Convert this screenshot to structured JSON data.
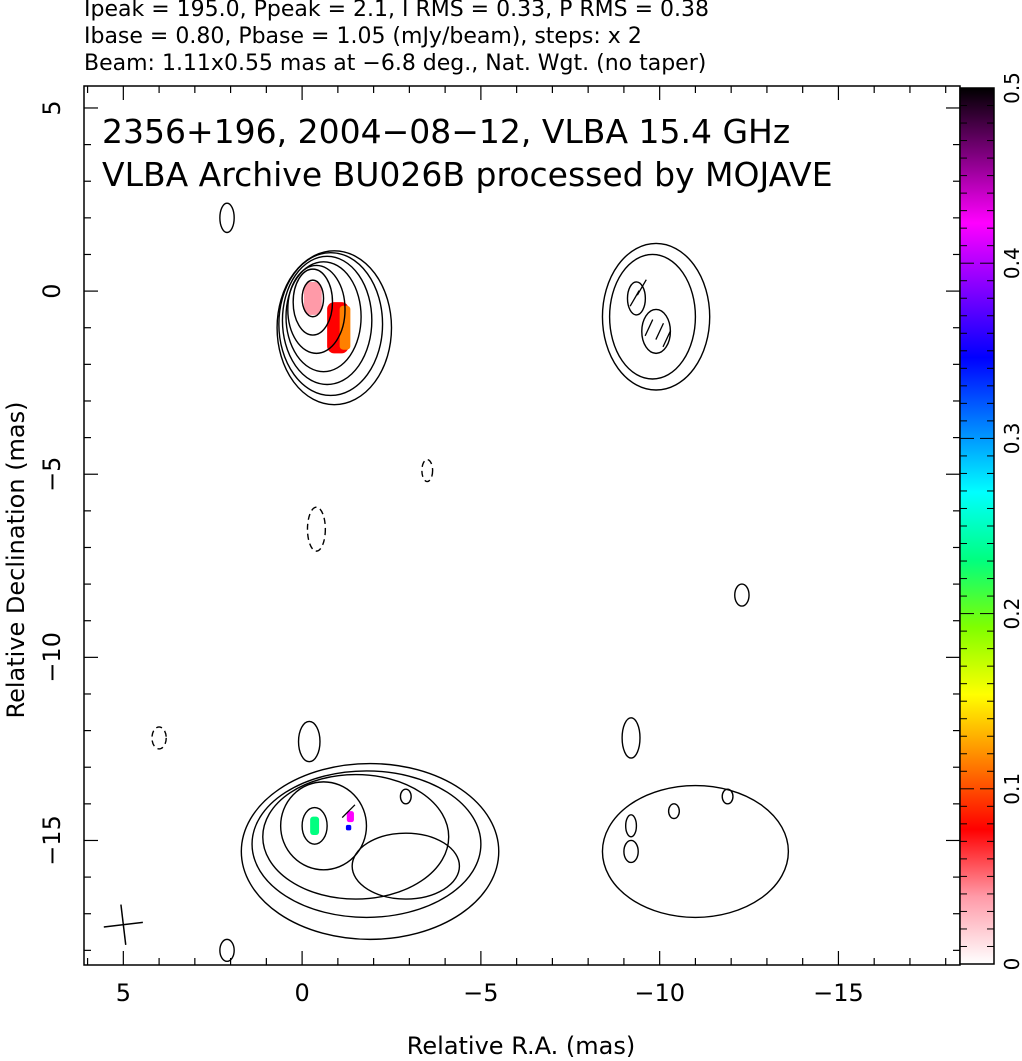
{
  "header": {
    "line1": "Ipeak = 195.0, Ppeak = 2.1, I RMS = 0.33, P RMS = 0.38",
    "line2": "Ibase = 0.80, Pbase = 1.05 (mJy/beam), steps: x 2",
    "line3": "Beam: 1.11x0.55 mas at −6.8 deg., Nat. Wgt. (no taper)"
  },
  "chart_data": {
    "type": "heatmap",
    "title_line1": "2356+196, 2004−08−12, VLBA 15.4 GHz",
    "title_line2": "VLBA Archive BU026B processed by MOJAVE",
    "xlabel": "Relative R.A. (mas)",
    "ylabel": "Relative Declination (mas)",
    "xlim": [
      6.1,
      -18.4
    ],
    "ylim": [
      -18.4,
      5.6
    ],
    "x_ticks": [
      5,
      0,
      -5,
      -10,
      -15
    ],
    "x_tick_labels": [
      "5",
      "0",
      "−5",
      "−10",
      "−15"
    ],
    "y_ticks": [
      5,
      0,
      -5,
      -10,
      -15
    ],
    "y_tick_labels": [
      "5",
      "0",
      "−5",
      "−10",
      "−15"
    ],
    "colorbar": {
      "range": [
        0,
        0.5
      ],
      "ticks": [
        0,
        0.1,
        0.2,
        0.3,
        0.4,
        0.5
      ],
      "tick_labels": [
        "0",
        "0.1",
        "0.2",
        "0.3",
        "0.4",
        "0.5"
      ],
      "colors": [
        "#ffffff",
        "#ff9aa8",
        "#ff0000",
        "#ff8000",
        "#ffff00",
        "#80ff00",
        "#00ff80",
        "#00ffff",
        "#0080ff",
        "#0000ff",
        "#8000ff",
        "#ff00ff",
        "#800080",
        "#000000"
      ]
    },
    "stokes_i_contours": [
      {
        "cx": -0.3,
        "cy": -0.2,
        "rx": 0.3,
        "ry": 0.5
      },
      {
        "cx": -0.3,
        "cy": -0.3,
        "rx": 0.55,
        "ry": 0.9
      },
      {
        "cx": -0.4,
        "cy": -0.5,
        "rx": 0.8,
        "ry": 1.2
      },
      {
        "cx": -0.6,
        "cy": -0.7,
        "rx": 1.05,
        "ry": 1.5
      },
      {
        "cx": -0.7,
        "cy": -0.8,
        "rx": 1.25,
        "ry": 1.75
      },
      {
        "cx": -0.8,
        "cy": -0.9,
        "rx": 1.45,
        "ry": 1.95
      },
      {
        "cx": -0.9,
        "cy": -1.0,
        "rx": 1.6,
        "ry": 2.1
      },
      {
        "cx": -0.35,
        "cy": -14.6,
        "rx": 0.35,
        "ry": 0.5
      },
      {
        "cx": -0.6,
        "cy": -14.6,
        "rx": 1.2,
        "ry": 1.2
      },
      {
        "cx": -2.9,
        "cy": -15.7,
        "rx": 1.5,
        "ry": 0.9
      },
      {
        "cx": -1.5,
        "cy": -14.9,
        "rx": 2.6,
        "ry": 1.7
      },
      {
        "cx": -1.8,
        "cy": -15.1,
        "rx": 3.2,
        "ry": 2.0
      },
      {
        "cx": -1.9,
        "cy": -15.3,
        "rx": 3.6,
        "ry": 2.4
      },
      {
        "cx": -0.2,
        "cy": -12.3,
        "rx": 0.3,
        "ry": 0.55
      },
      {
        "cx": -2.9,
        "cy": -13.8,
        "rx": 0.15,
        "ry": 0.2
      },
      {
        "cx": -12.3,
        "cy": -8.3,
        "rx": 0.2,
        "ry": 0.3
      },
      {
        "cx": -11.9,
        "cy": -13.8,
        "rx": 0.15,
        "ry": 0.2
      },
      {
        "cx": 2.1,
        "cy": 2.0,
        "rx": 0.2,
        "ry": 0.4
      },
      {
        "cx": 2.1,
        "cy": -18.0,
        "rx": 0.2,
        "ry": 0.3
      },
      {
        "cx": -9.2,
        "cy": -12.2,
        "rx": 0.25,
        "ry": 0.55
      },
      {
        "cx": -9.2,
        "cy": -15.3,
        "rx": 0.2,
        "ry": 0.3
      }
    ],
    "polarized_contours": [
      {
        "cx": -9.35,
        "cy": -0.2,
        "rx": 0.25,
        "ry": 0.45
      },
      {
        "cx": -9.9,
        "cy": -1.1,
        "rx": 0.4,
        "ry": 0.6
      },
      {
        "cx": -9.8,
        "cy": -0.7,
        "rx": 1.2,
        "ry": 1.7
      },
      {
        "cx": -9.9,
        "cy": -0.7,
        "rx": 1.5,
        "ry": 2.0
      },
      {
        "cx": -9.2,
        "cy": -14.6,
        "rx": 0.15,
        "ry": 0.3
      },
      {
        "cx": -10.4,
        "cy": -14.2,
        "rx": 0.15,
        "ry": 0.2
      },
      {
        "cx": -11.0,
        "cy": -15.3,
        "rx": 2.6,
        "ry": 1.8
      }
    ],
    "negative_contours": [
      {
        "cx": -0.4,
        "cy": -6.5,
        "rx": 0.25,
        "ry": 0.6
      },
      {
        "cx": -3.5,
        "cy": -4.9,
        "rx": 0.15,
        "ry": 0.3
      },
      {
        "cx": 4.0,
        "cy": -12.2,
        "rx": 0.2,
        "ry": 0.3
      }
    ],
    "fractional_polarization_patches": [
      {
        "x": -0.3,
        "y": -0.2,
        "w": 0.5,
        "h": 0.9,
        "value": 0.02
      },
      {
        "x": -1.0,
        "y": -1.0,
        "w": 0.6,
        "h": 1.4,
        "value": 0.08
      },
      {
        "x": -1.2,
        "y": -1.0,
        "w": 0.3,
        "h": 1.2,
        "value": 0.11
      },
      {
        "x": -0.35,
        "y": -14.6,
        "w": 0.25,
        "h": 0.5,
        "value": 0.22
      },
      {
        "x": -1.35,
        "y": -14.35,
        "w": 0.2,
        "h": 0.3,
        "value": 0.43
      },
      {
        "x": -1.3,
        "y": -14.65,
        "w": 0.15,
        "h": 0.15,
        "value": 0.33
      }
    ],
    "evpa_ticks": [
      {
        "x": -9.3,
        "y": -0.2,
        "angle": 30
      },
      {
        "x": -9.5,
        "y": 0.1,
        "angle": 30
      },
      {
        "x": -9.7,
        "y": -1.0,
        "angle": 25
      },
      {
        "x": -10.0,
        "y": -1.1,
        "angle": 25
      },
      {
        "x": -10.2,
        "y": -1.3,
        "angle": 25
      },
      {
        "x": -1.3,
        "y": -14.2,
        "angle": 45
      }
    ],
    "beam": {
      "x": 5.0,
      "y": -17.3,
      "major": 1.11,
      "minor": 0.55,
      "pa": -6.8
    }
  }
}
